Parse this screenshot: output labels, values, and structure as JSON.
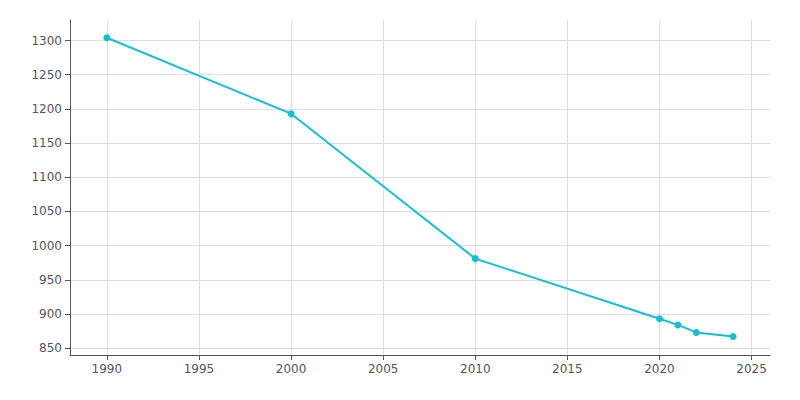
{
  "chart_data": {
    "type": "line",
    "x": [
      1990,
      2000,
      2010,
      2020,
      2021,
      2022,
      2024
    ],
    "values": [
      1304,
      1193,
      981,
      893,
      884,
      873,
      867
    ],
    "color": "#17BECF",
    "marker": "circle",
    "xlim": [
      1988,
      2026
    ],
    "ylim": [
      840,
      1330
    ],
    "xticks": [
      1990,
      1995,
      2000,
      2005,
      2010,
      2015,
      2020,
      2025
    ],
    "yticks": [
      850,
      900,
      950,
      1000,
      1050,
      1100,
      1150,
      1200,
      1250,
      1300
    ],
    "grid": true
  }
}
